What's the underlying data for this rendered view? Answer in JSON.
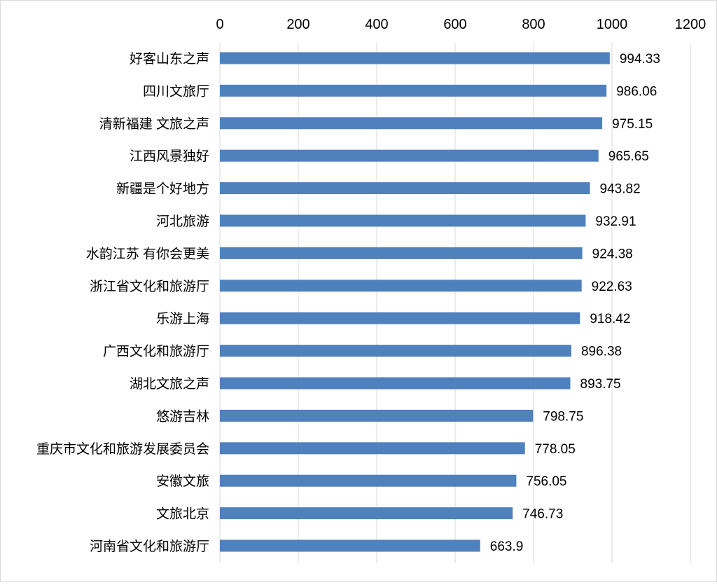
{
  "chart_data": {
    "type": "bar",
    "orientation": "horizontal",
    "categories": [
      "好客山东之声",
      "四川文旅厅",
      "清新福建 文旅之声",
      "江西风景独好",
      "新疆是个好地方",
      "河北旅游",
      "水韵江苏 有你会更美",
      "浙江省文化和旅游厅",
      "乐游上海",
      "广西文化和旅游厅",
      "湖北文旅之声",
      "悠游吉林",
      "重庆市文化和旅游发展委员会",
      "安徽文旅",
      "文旅北京",
      "河南省文化和旅游厅"
    ],
    "values": [
      994.33,
      986.06,
      975.15,
      965.65,
      943.82,
      932.91,
      924.38,
      922.63,
      918.42,
      896.38,
      893.75,
      798.75,
      778.05,
      756.05,
      746.73,
      663.9
    ],
    "value_labels": [
      "994.33",
      "986.06",
      "975.15",
      "965.65",
      "943.82",
      "932.91",
      "924.38",
      "922.63",
      "918.42",
      "896.38",
      "893.75",
      "798.75",
      "778.05",
      "756.05",
      "746.73",
      "663.9"
    ],
    "xlim": [
      0,
      1200
    ],
    "x_ticks": [
      "0",
      "200",
      "400",
      "600",
      "800",
      "1000",
      "1200"
    ],
    "axis_position": "top",
    "grid": true,
    "bar_color": "#4f81bd",
    "title": "",
    "xlabel": "",
    "ylabel": ""
  }
}
